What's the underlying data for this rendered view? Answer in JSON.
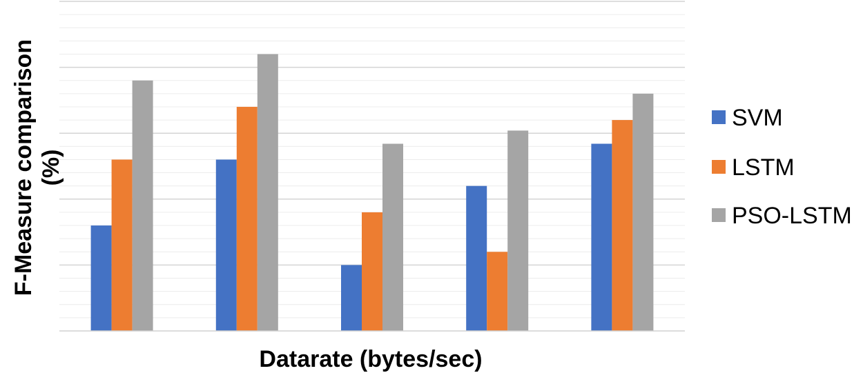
{
  "chart_data": {
    "type": "bar",
    "title": "",
    "xlabel": "Datarate (bytes/sec)",
    "ylabel_line1": "F-Measure comparison",
    "ylabel_line2": "(%)",
    "categories": [
      "",
      "",
      "",
      "",
      ""
    ],
    "series": [
      {
        "name": "SVM",
        "color": "#4472C4",
        "values": [
          40,
          65,
          25,
          55,
          71
        ]
      },
      {
        "name": "LSTM",
        "color": "#ED7D31",
        "values": [
          65,
          85,
          45,
          30,
          80
        ]
      },
      {
        "name": "PSO-LSTM",
        "color": "#A5A5A5",
        "values": [
          95,
          105,
          71,
          76,
          90
        ]
      }
    ],
    "ylim": [
      0,
      125
    ],
    "minor_grid_step": 5,
    "major_grid_step": 25,
    "grid": true,
    "legend_position": "right",
    "tick_labels_visible": false
  }
}
